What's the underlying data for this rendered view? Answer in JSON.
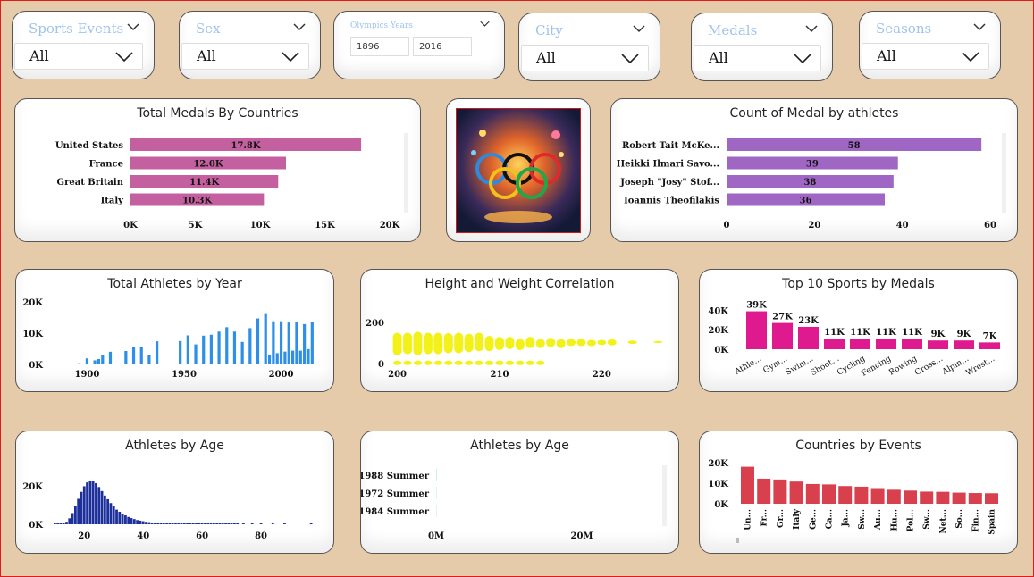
{
  "slicers": [
    {
      "title": "Sports Events",
      "value": "All"
    },
    {
      "title": "Sex",
      "value": "All"
    },
    {
      "title": "City",
      "value": "All"
    },
    {
      "title": "Medals",
      "value": "All"
    },
    {
      "title": "Seasons",
      "value": "All"
    }
  ],
  "years_slicer": {
    "title": "Olympics Years",
    "from": "1896",
    "to": "2016"
  },
  "colors": {
    "background": "#e6cbab",
    "countries_bar": "#c4609f",
    "athletes_bar": "#a066c4",
    "year_bar": "#2d8fe8",
    "scatter": "#f2f21a",
    "sports_bar": "#df1a8f",
    "age_bar": "#1c2f9a",
    "season_bar": "#0fd23c",
    "events_bar": "#d8404e"
  },
  "chart_data": [
    {
      "id": "medals_by_country",
      "type": "bar",
      "title": "Total Medals By Countries",
      "categories": [
        "United States",
        "France",
        "Great Britain",
        "Italy"
      ],
      "values": [
        17800,
        12000,
        11400,
        10300
      ],
      "labels": [
        "17.8K",
        "12.0K",
        "11.4K",
        "10.3K"
      ],
      "xticks": [
        "0K",
        "5K",
        "10K",
        "15K",
        "20K"
      ],
      "xlim": [
        0,
        20000
      ]
    },
    {
      "id": "medal_by_athletes",
      "type": "bar",
      "title": "Count of Medal by athletes",
      "categories": [
        "Robert Tait McKe...",
        "Heikki Ilmari Savo...",
        "Joseph \"Josy\" Stof...",
        "Ioannis Theofilakis"
      ],
      "values": [
        58,
        39,
        38,
        36
      ],
      "labels": [
        "58",
        "39",
        "38",
        "36"
      ],
      "xticks": [
        "0",
        "20",
        "40",
        "60"
      ],
      "xlim": [
        0,
        60
      ]
    },
    {
      "id": "athletes_by_year",
      "type": "bar",
      "title": "Total Athletes by Year",
      "x": [
        1896,
        1900,
        1904,
        1906,
        1908,
        1912,
        1920,
        1924,
        1928,
        1932,
        1936,
        1948,
        1952,
        1956,
        1960,
        1964,
        1968,
        1972,
        1976,
        1980,
        1984,
        1988,
        1992,
        1994,
        1996,
        1998,
        2000,
        2002,
        2004,
        2006,
        2008,
        2010,
        2012,
        2014,
        2016
      ],
      "values": [
        380,
        1940,
        1300,
        1730,
        3100,
        4040,
        4290,
        5700,
        5570,
        2970,
        7400,
        7480,
        9300,
        6400,
        9200,
        9500,
        10500,
        11900,
        10500,
        7200,
        11600,
        14700,
        16400,
        3160,
        13800,
        3600,
        13800,
        4100,
        13400,
        4400,
        13600,
        4400,
        12900,
        4900,
        13700
      ],
      "yticks": [
        "0K",
        "10K",
        "20K"
      ],
      "xticks": [
        "1900",
        "1950",
        "2000"
      ],
      "ylim": [
        0,
        20000
      ],
      "xlim": [
        1880,
        2020
      ]
    },
    {
      "id": "height_weight",
      "type": "scatter",
      "title": "Height and Weight Correlation",
      "yticks": [
        "0",
        "200"
      ],
      "xticks": [
        "200",
        "210",
        "220"
      ],
      "xlim": [
        199.6,
        226
      ],
      "ylim": [
        0,
        220
      ],
      "points": [
        {
          "x": 200,
          "lo": 40,
          "hi": 150
        },
        {
          "x": 201,
          "lo": 45,
          "hi": 150
        },
        {
          "x": 202,
          "lo": 40,
          "hi": 155
        },
        {
          "x": 203,
          "lo": 45,
          "hi": 150
        },
        {
          "x": 204,
          "lo": 45,
          "hi": 150
        },
        {
          "x": 205,
          "lo": 50,
          "hi": 148
        },
        {
          "x": 206,
          "lo": 50,
          "hi": 150
        },
        {
          "x": 207,
          "lo": 55,
          "hi": 145
        },
        {
          "x": 208,
          "lo": 60,
          "hi": 150
        },
        {
          "x": 209,
          "lo": 60,
          "hi": 135
        },
        {
          "x": 210,
          "lo": 65,
          "hi": 130
        },
        {
          "x": 211,
          "lo": 70,
          "hi": 130
        },
        {
          "x": 212,
          "lo": 65,
          "hi": 120
        },
        {
          "x": 213,
          "lo": 75,
          "hi": 130
        },
        {
          "x": 214,
          "lo": 75,
          "hi": 120
        },
        {
          "x": 215,
          "lo": 80,
          "hi": 125
        },
        {
          "x": 216,
          "lo": 75,
          "hi": 120
        },
        {
          "x": 217,
          "lo": 85,
          "hi": 120
        },
        {
          "x": 218,
          "lo": 85,
          "hi": 120
        },
        {
          "x": 219,
          "lo": 85,
          "hi": 115
        },
        {
          "x": 220,
          "lo": 90,
          "hi": 115
        },
        {
          "x": 221,
          "lo": 88,
          "hi": 118
        },
        {
          "x": 223,
          "lo": 95,
          "hi": 112
        },
        {
          "x": 225.5,
          "lo": 100,
          "hi": 110
        }
      ],
      "low_points": [
        200,
        201,
        202,
        203,
        204,
        205,
        206,
        207,
        208,
        209,
        210,
        211,
        212,
        213,
        214
      ]
    },
    {
      "id": "top_sports",
      "type": "bar",
      "title": "Top 10 Sports by Medals",
      "categories": [
        "Athle...",
        "Gym...",
        "Swim...",
        "Shoot...",
        "Cycling",
        "Fencing",
        "Rowing",
        "Cross...",
        "Alpin...",
        "Wrest..."
      ],
      "values": [
        39000,
        27000,
        23000,
        11000,
        11000,
        11000,
        11000,
        9000,
        9000,
        7000
      ],
      "labels": [
        "39K",
        "27K",
        "23K",
        "11K",
        "11K",
        "11K",
        "11K",
        "9K",
        "9K",
        "7K"
      ],
      "yticks": [
        "0K",
        "20K",
        "40K"
      ],
      "ylim": [
        0,
        45000
      ]
    },
    {
      "id": "athletes_by_age",
      "type": "bar",
      "title": "Athletes by Age",
      "x": [
        10,
        11,
        12,
        13,
        14,
        15,
        16,
        17,
        18,
        19,
        20,
        21,
        22,
        23,
        24,
        25,
        26,
        27,
        28,
        29,
        30,
        31,
        32,
        33,
        34,
        35,
        36,
        37,
        38,
        39,
        40,
        41,
        42,
        43,
        44,
        45,
        46,
        47,
        48,
        49,
        50,
        51,
        52,
        53,
        54,
        55,
        56,
        57,
        58,
        59,
        60,
        61,
        62,
        63,
        64,
        65,
        66,
        67,
        68,
        69,
        70,
        71,
        72,
        74,
        77,
        80,
        84,
        88,
        97
      ],
      "values": [
        30,
        60,
        120,
        400,
        1300,
        3100,
        5800,
        9300,
        13200,
        16800,
        19700,
        21700,
        22700,
        22500,
        21300,
        19300,
        17200,
        14900,
        13000,
        11000,
        9300,
        7600,
        6500,
        5400,
        4600,
        3800,
        3200,
        2700,
        2200,
        1900,
        1600,
        1300,
        1100,
        900,
        800,
        700,
        600,
        500,
        450,
        400,
        350,
        300,
        280,
        250,
        230,
        200,
        180,
        160,
        140,
        120,
        110,
        100,
        90,
        80,
        70,
        60,
        55,
        50,
        45,
        40,
        35,
        30,
        30,
        25,
        20,
        20,
        15,
        10,
        10
      ],
      "yticks": [
        "0K",
        "20K"
      ],
      "xticks": [
        "20",
        "40",
        "60",
        "80"
      ],
      "ylim": [
        0,
        25000
      ],
      "xlim": [
        9,
        100
      ]
    },
    {
      "id": "athletes_by_season",
      "type": "bar",
      "title": "Athletes by Age",
      "categories": [
        "1988 Summer",
        "1972 Summer",
        "1984 Summer"
      ],
      "values": [
        23800,
        20200,
        18800
      ],
      "xticks": [
        "0M",
        "20M"
      ],
      "xlim": [
        0,
        20000000
      ]
    },
    {
      "id": "countries_by_events",
      "type": "bar",
      "title": "Countries by Events",
      "categories": [
        "Un...",
        "Fr...",
        "Gr...",
        "Italy",
        "Ge...",
        "Ca...",
        "Ja...",
        "Sw...",
        "Au...",
        "Hu...",
        "Pol...",
        "Sw...",
        "Net...",
        "So...",
        "Fin...",
        "Spain"
      ],
      "values": [
        18000,
        12200,
        11800,
        10800,
        9600,
        9400,
        8600,
        8300,
        7600,
        6800,
        6400,
        5900,
        5800,
        5400,
        5200,
        5100
      ],
      "yticks": [
        "0K",
        "10K",
        "20K"
      ],
      "ylim": [
        0,
        22000
      ]
    }
  ]
}
